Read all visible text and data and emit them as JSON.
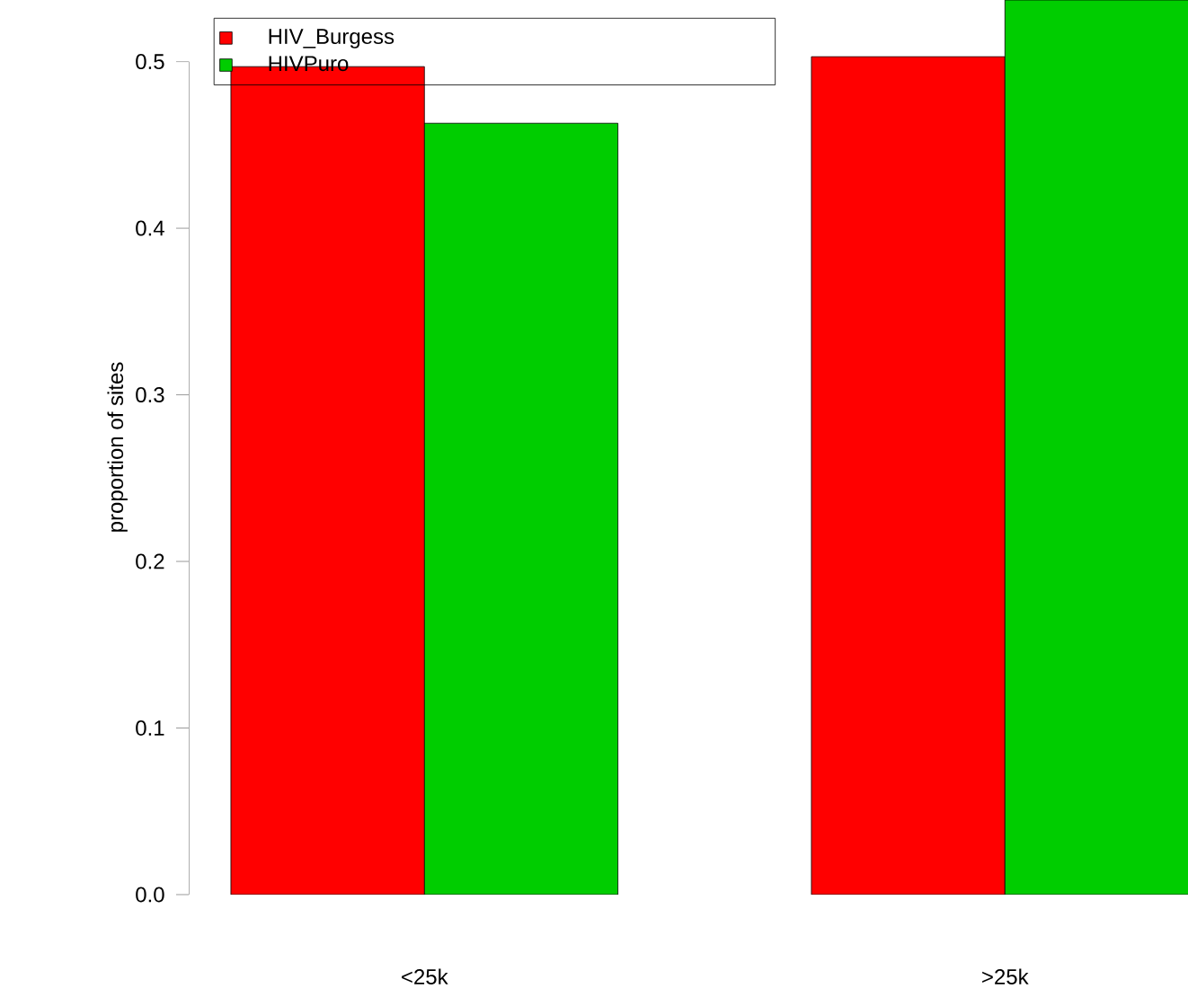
{
  "chart_data": {
    "type": "bar",
    "ylabel": "proportion of sites",
    "categories": [
      "<25k",
      ">25k"
    ],
    "series": [
      {
        "name": "HIV_Burgess",
        "color": "#ff0000",
        "values": [
          0.497,
          0.503
        ]
      },
      {
        "name": "HIVPuro",
        "color": "#00cd00",
        "values": [
          0.463,
          0.537
        ]
      }
    ],
    "ylim": [
      0,
      0.537
    ],
    "yticks": [
      {
        "value": 0,
        "label": "0.0"
      },
      0.1,
      0.2,
      0.3,
      0.4,
      0.5
    ],
    "legend": "top left",
    "grid": false
  }
}
